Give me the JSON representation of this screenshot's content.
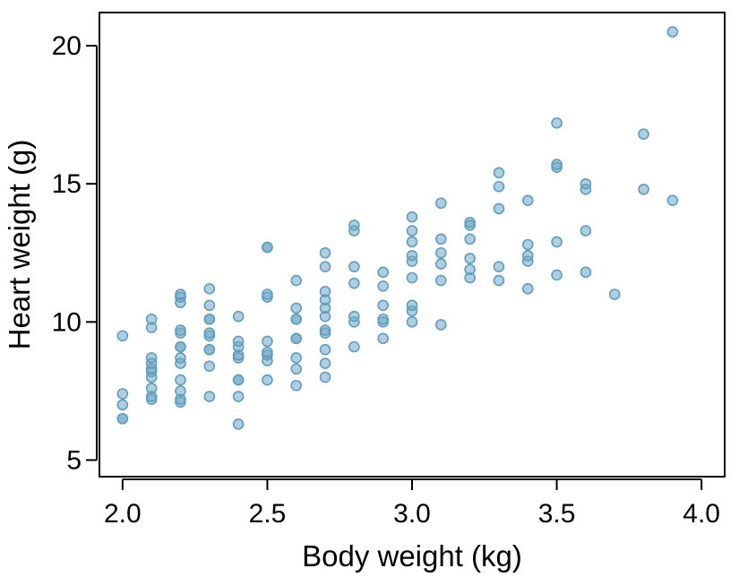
{
  "chart_data": {
    "type": "scatter",
    "title": "",
    "xlabel": "Body weight (kg)",
    "ylabel": "Heart weight (g)",
    "xlim": [
      1.92,
      4.08
    ],
    "ylim": [
      4.4,
      21.2
    ],
    "xticks": [
      "2.0",
      "2.5",
      "3.0",
      "3.5",
      "4.0"
    ],
    "yticks": [
      "5",
      "10",
      "15",
      "20"
    ],
    "grid": false,
    "legend": "none",
    "marker_color": "#6ea8c7",
    "points": [
      [
        2.0,
        6.5
      ],
      [
        2.0,
        6.5
      ],
      [
        2.0,
        7.0
      ],
      [
        2.0,
        7.4
      ],
      [
        2.0,
        9.5
      ],
      [
        2.1,
        7.2
      ],
      [
        2.1,
        7.3
      ],
      [
        2.1,
        7.6
      ],
      [
        2.1,
        8.0
      ],
      [
        2.1,
        8.2
      ],
      [
        2.1,
        8.3
      ],
      [
        2.1,
        8.5
      ],
      [
        2.1,
        8.7
      ],
      [
        2.1,
        9.8
      ],
      [
        2.1,
        10.1
      ],
      [
        2.2,
        7.1
      ],
      [
        2.2,
        7.2
      ],
      [
        2.2,
        7.5
      ],
      [
        2.2,
        7.9
      ],
      [
        2.2,
        8.5
      ],
      [
        2.2,
        8.7
      ],
      [
        2.2,
        9.1
      ],
      [
        2.2,
        9.1
      ],
      [
        2.2,
        9.6
      ],
      [
        2.2,
        9.7
      ],
      [
        2.2,
        10.7
      ],
      [
        2.2,
        10.9
      ],
      [
        2.2,
        11.0
      ],
      [
        2.3,
        7.3
      ],
      [
        2.3,
        8.4
      ],
      [
        2.3,
        9.0
      ],
      [
        2.3,
        9.0
      ],
      [
        2.3,
        9.5
      ],
      [
        2.3,
        9.6
      ],
      [
        2.3,
        10.1
      ],
      [
        2.3,
        10.1
      ],
      [
        2.3,
        10.6
      ],
      [
        2.3,
        11.2
      ],
      [
        2.4,
        6.3
      ],
      [
        2.4,
        7.3
      ],
      [
        2.4,
        7.9
      ],
      [
        2.4,
        7.9
      ],
      [
        2.4,
        8.7
      ],
      [
        2.4,
        8.8
      ],
      [
        2.4,
        9.1
      ],
      [
        2.4,
        9.3
      ],
      [
        2.4,
        10.2
      ],
      [
        2.5,
        7.9
      ],
      [
        2.5,
        8.6
      ],
      [
        2.5,
        8.8
      ],
      [
        2.5,
        8.9
      ],
      [
        2.5,
        9.3
      ],
      [
        2.5,
        10.9
      ],
      [
        2.5,
        11.0
      ],
      [
        2.5,
        12.7
      ],
      [
        2.5,
        12.7
      ],
      [
        2.6,
        7.7
      ],
      [
        2.6,
        8.3
      ],
      [
        2.6,
        8.7
      ],
      [
        2.6,
        9.4
      ],
      [
        2.6,
        9.4
      ],
      [
        2.6,
        10.1
      ],
      [
        2.6,
        10.1
      ],
      [
        2.6,
        10.5
      ],
      [
        2.6,
        11.5
      ],
      [
        2.7,
        8.0
      ],
      [
        2.7,
        8.5
      ],
      [
        2.7,
        9.0
      ],
      [
        2.7,
        9.6
      ],
      [
        2.7,
        9.7
      ],
      [
        2.7,
        10.2
      ],
      [
        2.7,
        10.5
      ],
      [
        2.7,
        10.8
      ],
      [
        2.7,
        11.1
      ],
      [
        2.7,
        12.0
      ],
      [
        2.7,
        12.5
      ],
      [
        2.8,
        9.1
      ],
      [
        2.8,
        10.0
      ],
      [
        2.8,
        10.2
      ],
      [
        2.8,
        11.4
      ],
      [
        2.8,
        12.0
      ],
      [
        2.8,
        13.3
      ],
      [
        2.8,
        13.5
      ],
      [
        2.9,
        9.4
      ],
      [
        2.9,
        10.0
      ],
      [
        2.9,
        10.1
      ],
      [
        2.9,
        10.6
      ],
      [
        2.9,
        11.3
      ],
      [
        2.9,
        11.8
      ],
      [
        3.0,
        10.0
      ],
      [
        3.0,
        10.4
      ],
      [
        3.0,
        10.6
      ],
      [
        3.0,
        11.6
      ],
      [
        3.0,
        12.2
      ],
      [
        3.0,
        12.4
      ],
      [
        3.0,
        12.9
      ],
      [
        3.0,
        13.3
      ],
      [
        3.0,
        13.8
      ],
      [
        3.1,
        9.9
      ],
      [
        3.1,
        11.5
      ],
      [
        3.1,
        12.1
      ],
      [
        3.1,
        12.5
      ],
      [
        3.1,
        13.0
      ],
      [
        3.1,
        14.3
      ],
      [
        3.2,
        11.6
      ],
      [
        3.2,
        11.9
      ],
      [
        3.2,
        12.3
      ],
      [
        3.2,
        13.0
      ],
      [
        3.2,
        13.5
      ],
      [
        3.2,
        13.6
      ],
      [
        3.3,
        11.5
      ],
      [
        3.3,
        12.0
      ],
      [
        3.3,
        14.1
      ],
      [
        3.3,
        14.9
      ],
      [
        3.3,
        15.4
      ],
      [
        3.4,
        11.2
      ],
      [
        3.4,
        12.2
      ],
      [
        3.4,
        12.4
      ],
      [
        3.4,
        12.8
      ],
      [
        3.4,
        14.4
      ],
      [
        3.5,
        11.7
      ],
      [
        3.5,
        12.9
      ],
      [
        3.5,
        15.6
      ],
      [
        3.5,
        15.7
      ],
      [
        3.5,
        17.2
      ],
      [
        3.6,
        11.8
      ],
      [
        3.6,
        13.3
      ],
      [
        3.6,
        14.8
      ],
      [
        3.6,
        15.0
      ],
      [
        3.7,
        11.0
      ],
      [
        3.8,
        14.8
      ],
      [
        3.8,
        16.8
      ],
      [
        3.9,
        14.4
      ],
      [
        3.9,
        20.5
      ]
    ]
  }
}
